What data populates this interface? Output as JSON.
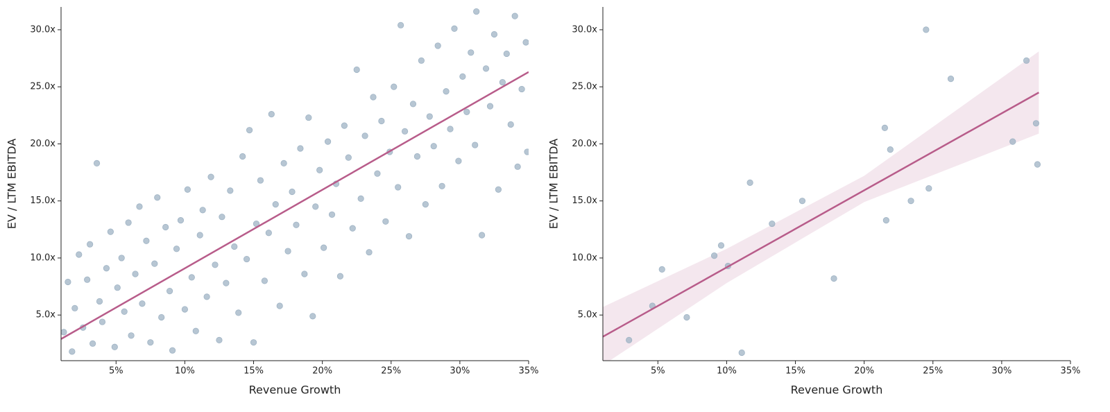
{
  "chart_data": [
    {
      "type": "scatter",
      "xlabel": "Revenue Growth",
      "ylabel": "EV / LTM EBITDA",
      "color": "#9fb3c4",
      "fit_color": "#b85c8a",
      "xlim": [
        1,
        35
      ],
      "ylim": [
        1,
        32
      ],
      "xticks": [
        {
          "value": 5,
          "label": "5%"
        },
        {
          "value": 10,
          "label": "10%"
        },
        {
          "value": 15,
          "label": "15%"
        },
        {
          "value": 20,
          "label": "20%"
        },
        {
          "value": 25,
          "label": "25%"
        },
        {
          "value": 30,
          "label": "30%"
        },
        {
          "value": 35,
          "label": "35%"
        }
      ],
      "yticks": [
        {
          "value": 5,
          "label": "5.0x"
        },
        {
          "value": 10,
          "label": "10.0x"
        },
        {
          "value": 15,
          "label": "15.0x"
        },
        {
          "value": 20,
          "label": "20.0x"
        },
        {
          "value": 25,
          "label": "25.0x"
        },
        {
          "value": 30,
          "label": "30.0x"
        }
      ],
      "x": [
        1.2,
        1.5,
        1.8,
        2.0,
        2.3,
        2.6,
        2.9,
        3.1,
        3.3,
        3.6,
        3.8,
        4.0,
        4.3,
        4.6,
        4.9,
        5.1,
        5.4,
        5.6,
        5.9,
        6.1,
        6.4,
        6.7,
        6.9,
        7.2,
        7.5,
        7.8,
        8.0,
        8.3,
        8.6,
        8.9,
        9.1,
        9.4,
        9.7,
        10.0,
        10.2,
        10.5,
        10.8,
        11.1,
        11.3,
        11.6,
        11.9,
        12.2,
        12.5,
        12.7,
        13.0,
        13.3,
        13.6,
        13.9,
        14.2,
        14.5,
        14.7,
        15.0,
        15.2,
        15.5,
        15.8,
        16.1,
        16.3,
        16.6,
        16.9,
        17.2,
        17.5,
        17.8,
        18.1,
        18.4,
        18.7,
        19.0,
        19.3,
        19.5,
        19.8,
        20.1,
        20.4,
        20.7,
        21.0,
        21.3,
        21.6,
        21.9,
        22.2,
        22.5,
        22.8,
        23.1,
        23.4,
        23.7,
        24.0,
        24.3,
        24.6,
        24.9,
        25.2,
        25.5,
        25.7,
        26.0,
        26.3,
        26.6,
        26.9,
        27.2,
        27.5,
        27.8,
        28.1,
        28.4,
        28.7,
        29.0,
        29.3,
        29.6,
        29.9,
        30.2,
        30.5,
        30.8,
        31.1,
        31.2,
        31.6,
        31.9,
        32.2,
        32.5,
        32.8,
        33.1,
        33.4,
        33.7,
        34.0,
        34.2,
        34.5,
        34.8,
        34.9
      ],
      "values": [
        3.5,
        7.9,
        1.8,
        5.6,
        10.3,
        3.9,
        8.1,
        11.2,
        2.5,
        18.3,
        6.2,
        4.4,
        9.1,
        12.3,
        2.2,
        7.4,
        10.0,
        5.3,
        13.1,
        3.2,
        8.6,
        14.5,
        6.0,
        11.5,
        2.6,
        9.5,
        15.3,
        4.8,
        12.7,
        7.1,
        1.9,
        10.8,
        13.3,
        5.5,
        16.0,
        8.3,
        3.6,
        12.0,
        14.2,
        6.6,
        17.1,
        9.4,
        2.8,
        13.6,
        7.8,
        15.9,
        11.0,
        5.2,
        18.9,
        9.9,
        21.2,
        2.6,
        13.0,
        16.8,
        8.0,
        12.2,
        22.6,
        14.7,
        5.8,
        18.3,
        10.6,
        15.8,
        12.9,
        19.6,
        8.6,
        22.3,
        4.9,
        14.5,
        17.7,
        10.9,
        20.2,
        13.8,
        16.5,
        8.4,
        21.6,
        18.8,
        12.6,
        26.5,
        15.2,
        20.7,
        10.5,
        24.1,
        17.4,
        22.0,
        13.2,
        19.3,
        25.0,
        16.2,
        30.4,
        21.1,
        11.9,
        23.5,
        18.9,
        27.3,
        14.7,
        22.4,
        19.8,
        28.6,
        16.3,
        24.6,
        21.3,
        30.1,
        18.5,
        25.9,
        22.8,
        28.0,
        19.9,
        31.6,
        12.0,
        26.6,
        23.3,
        29.6,
        16.0,
        25.4,
        27.9,
        21.7,
        31.2,
        18.0,
        24.8,
        28.9,
        19.3
      ],
      "fit_x": [
        1,
        35
      ],
      "fit_y": [
        2.9,
        26.3
      ]
    },
    {
      "type": "scatter",
      "xlabel": "Revenue Growth",
      "ylabel": "EV / LTM EBITDA",
      "color": "#9fb3c4",
      "fit_color": "#b85c8a",
      "band_color": "#f3e4ec",
      "xlim": [
        1,
        35
      ],
      "ylim": [
        1,
        32
      ],
      "xticks": [
        {
          "value": 5,
          "label": "5%"
        },
        {
          "value": 10,
          "label": "10%"
        },
        {
          "value": 15,
          "label": "15%"
        },
        {
          "value": 20,
          "label": "20%"
        },
        {
          "value": 25,
          "label": "25%"
        },
        {
          "value": 30,
          "label": "30%"
        },
        {
          "value": 35,
          "label": "35%"
        }
      ],
      "yticks": [
        {
          "value": 5,
          "label": "5.0x"
        },
        {
          "value": 10,
          "label": "10.0x"
        },
        {
          "value": 15,
          "label": "15.0x"
        },
        {
          "value": 20,
          "label": "20.0x"
        },
        {
          "value": 25,
          "label": "25.0x"
        },
        {
          "value": 30,
          "label": "30.0x"
        }
      ],
      "x": [
        2.9,
        4.6,
        5.3,
        7.1,
        9.1,
        9.6,
        10.1,
        11.1,
        11.7,
        13.3,
        15.5,
        17.8,
        21.5,
        21.6,
        21.9,
        23.4,
        24.5,
        24.7,
        26.3,
        30.8,
        31.8,
        32.5,
        32.6
      ],
      "values": [
        2.8,
        5.8,
        9.0,
        4.8,
        10.2,
        11.1,
        9.3,
        1.7,
        16.6,
        13.0,
        15.0,
        8.2,
        21.4,
        13.3,
        19.5,
        15.0,
        30.0,
        16.1,
        25.7,
        20.2,
        27.3,
        21.8,
        18.2
      ],
      "fit_x": [
        1,
        32.7
      ],
      "fit_y": [
        3.1,
        24.5
      ],
      "band_x": [
        1,
        10,
        20,
        32.7
      ],
      "band_upper": [
        5.7,
        10.8,
        17.2,
        28.1
      ],
      "band_lower": [
        0.6,
        7.8,
        14.9,
        20.9
      ]
    }
  ]
}
